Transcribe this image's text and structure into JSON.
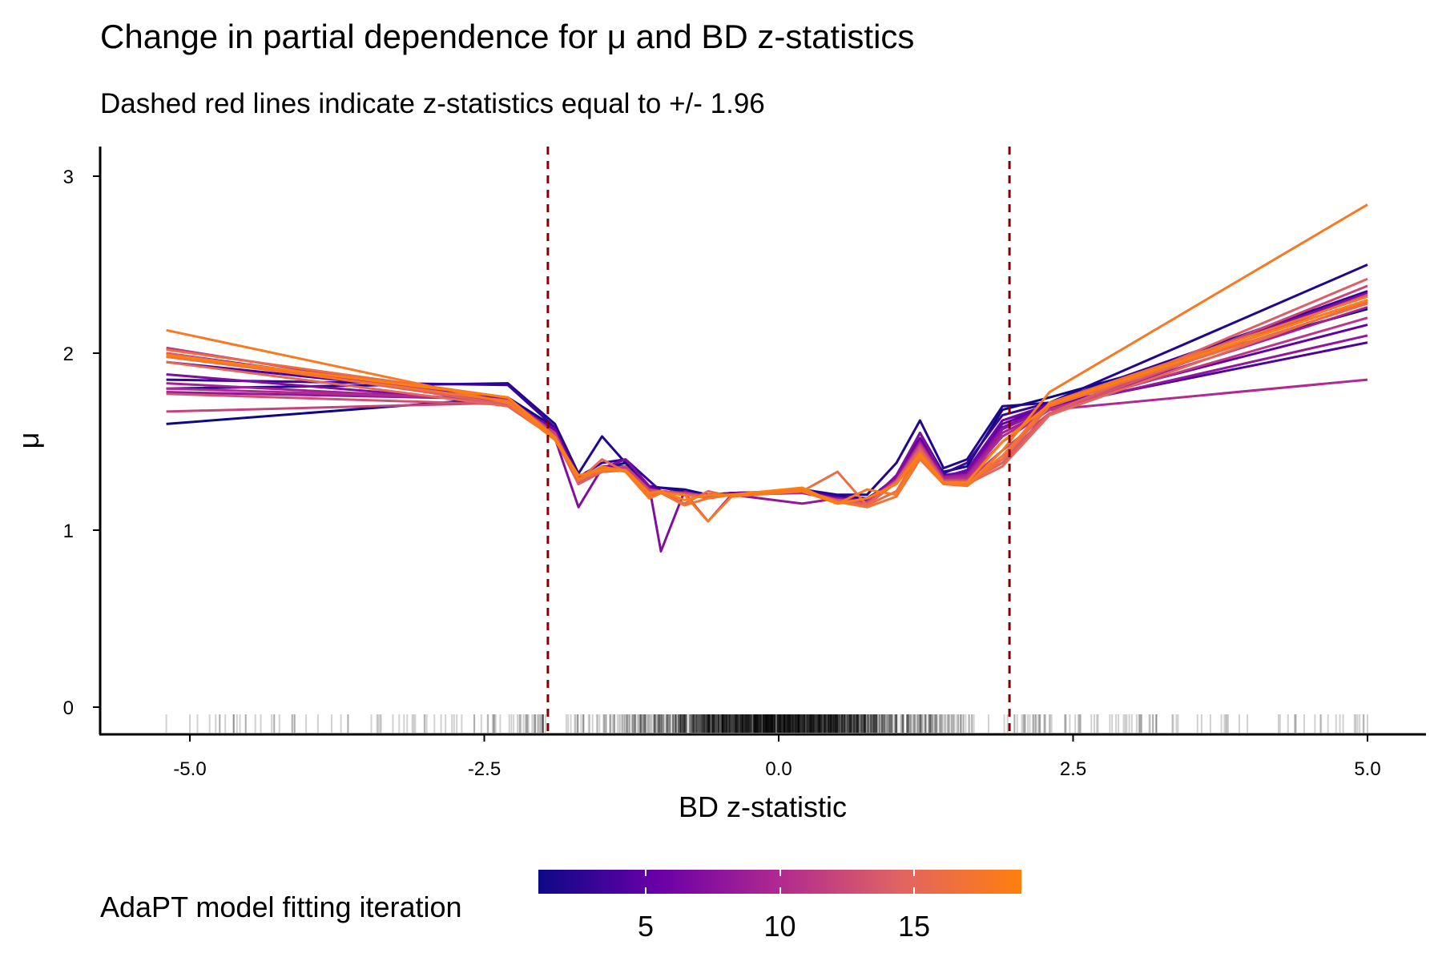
{
  "title": "Change in partial dependence for μ and BD z-statistics",
  "subtitle": "Dashed red lines indicate z-statistics equal to +/- 1.96",
  "legend": {
    "title": "AdaPT model fitting iteration",
    "range": [
      1,
      19
    ],
    "ticks": [
      "5",
      "10",
      "15"
    ],
    "colors": [
      "#0d0887",
      "#6a00a8",
      "#b12a90",
      "#e16462",
      "#ff7f0e"
    ]
  },
  "chart_data": {
    "type": "line",
    "title": "Change in partial dependence for μ and BD z-statistics",
    "subtitle": "Dashed red lines indicate z-statistics equal to +/- 1.96",
    "xlabel": "BD z-statistic",
    "ylabel": "μ",
    "xlim": [
      -5.8,
      5.8
    ],
    "ylim": [
      -0.15,
      3.15
    ],
    "xticks": [
      "-5.0",
      "-2.5",
      "0.0",
      "2.5",
      "5.0"
    ],
    "yticks": [
      "0",
      "1",
      "2",
      "3"
    ],
    "grid": false,
    "reference_lines": {
      "x": [
        -1.96,
        1.96
      ],
      "color": "#7f0000",
      "style": "dashed"
    },
    "rug": "dense black ticks of BD z-statistics along the x axis, concentrated between -2.5 and 2.5",
    "color_scale": "plasma-like, dark blue (iteration 1) to orange (iteration 19)",
    "x": [
      -5.2,
      -2.3,
      -1.9,
      -1.7,
      -1.5,
      -1.3,
      -1.1,
      -1.0,
      -0.8,
      -0.6,
      -0.4,
      0.2,
      0.5,
      0.75,
      1.0,
      1.2,
      1.4,
      1.6,
      1.9,
      2.3,
      5.0
    ],
    "series": [
      {
        "iteration": 1,
        "values": [
          1.6,
          1.75,
          1.58,
          1.3,
          1.35,
          1.38,
          1.23,
          1.24,
          1.23,
          1.2,
          1.2,
          1.23,
          1.19,
          1.18,
          1.28,
          1.48,
          1.33,
          1.36,
          1.68,
          1.75,
          2.25
        ]
      },
      {
        "iteration": 2,
        "values": [
          1.8,
          1.83,
          1.6,
          1.32,
          1.53,
          1.38,
          1.25,
          1.24,
          1.22,
          1.19,
          1.2,
          1.23,
          1.2,
          1.2,
          1.38,
          1.62,
          1.35,
          1.4,
          1.7,
          1.72,
          2.5
        ]
      },
      {
        "iteration": 3,
        "values": [
          1.85,
          1.82,
          1.58,
          1.3,
          1.38,
          1.4,
          1.28,
          1.22,
          1.21,
          1.2,
          1.21,
          1.22,
          1.19,
          1.17,
          1.3,
          1.55,
          1.32,
          1.38,
          1.65,
          1.72,
          2.35
        ]
      },
      {
        "iteration": 4,
        "values": [
          1.95,
          1.75,
          1.55,
          1.28,
          1.36,
          1.36,
          1.24,
          1.22,
          1.2,
          1.19,
          1.21,
          1.22,
          1.18,
          1.16,
          1.3,
          1.5,
          1.3,
          1.32,
          1.62,
          1.7,
          2.06
        ]
      },
      {
        "iteration": 5,
        "values": [
          1.98,
          1.74,
          1.56,
          1.3,
          1.34,
          1.35,
          1.25,
          1.22,
          1.21,
          1.19,
          1.2,
          1.22,
          1.18,
          1.16,
          1.29,
          1.52,
          1.31,
          1.33,
          1.6,
          1.7,
          2.16
        ]
      },
      {
        "iteration": 6,
        "values": [
          2.0,
          1.73,
          1.57,
          1.29,
          1.35,
          1.36,
          1.24,
          1.22,
          1.21,
          1.2,
          1.21,
          1.22,
          1.18,
          1.17,
          1.3,
          1.5,
          1.3,
          1.34,
          1.62,
          1.71,
          2.3
        ]
      },
      {
        "iteration": 7,
        "values": [
          1.88,
          1.72,
          1.52,
          1.13,
          1.35,
          1.4,
          1.25,
          0.88,
          1.22,
          1.18,
          1.2,
          1.22,
          1.17,
          1.15,
          1.31,
          1.55,
          1.3,
          1.32,
          1.58,
          1.7,
          2.34
        ]
      },
      {
        "iteration": 8,
        "values": [
          1.78,
          1.74,
          1.55,
          1.27,
          1.34,
          1.36,
          1.22,
          1.22,
          1.21,
          1.19,
          1.2,
          1.15,
          1.18,
          1.16,
          1.29,
          1.5,
          1.29,
          1.3,
          1.57,
          1.69,
          2.1
        ]
      },
      {
        "iteration": 9,
        "values": [
          1.83,
          1.73,
          1.54,
          1.28,
          1.34,
          1.35,
          1.23,
          1.22,
          1.2,
          1.19,
          1.2,
          1.22,
          1.17,
          1.16,
          1.28,
          1.48,
          1.3,
          1.31,
          1.55,
          1.68,
          2.26
        ]
      },
      {
        "iteration": 10,
        "values": [
          1.8,
          1.74,
          1.55,
          1.26,
          1.34,
          1.36,
          1.22,
          1.22,
          1.21,
          1.05,
          1.2,
          1.21,
          1.17,
          1.16,
          1.28,
          1.49,
          1.29,
          1.3,
          1.53,
          1.68,
          1.85
        ]
      },
      {
        "iteration": 11,
        "values": [
          2.03,
          1.72,
          1.53,
          1.27,
          1.33,
          1.34,
          1.22,
          1.22,
          1.21,
          1.19,
          1.2,
          1.22,
          1.17,
          1.16,
          1.28,
          1.47,
          1.28,
          1.29,
          1.5,
          1.68,
          2.2
        ]
      },
      {
        "iteration": 12,
        "values": [
          1.67,
          1.72,
          1.55,
          1.28,
          1.34,
          1.36,
          1.23,
          1.22,
          1.21,
          1.19,
          1.2,
          1.22,
          1.17,
          1.15,
          1.27,
          1.48,
          1.28,
          1.28,
          1.45,
          1.66,
          2.38
        ]
      },
      {
        "iteration": 13,
        "values": [
          1.77,
          1.71,
          1.52,
          1.27,
          1.33,
          1.34,
          1.22,
          1.22,
          1.2,
          1.19,
          1.2,
          1.22,
          1.17,
          1.15,
          1.28,
          1.47,
          1.28,
          1.28,
          1.4,
          1.66,
          2.33
        ]
      },
      {
        "iteration": 14,
        "values": [
          2.0,
          1.71,
          1.52,
          1.26,
          1.33,
          1.34,
          1.2,
          1.22,
          1.2,
          1.19,
          1.2,
          1.22,
          1.16,
          1.15,
          1.27,
          1.46,
          1.27,
          1.27,
          1.38,
          1.66,
          2.42
        ]
      },
      {
        "iteration": 15,
        "values": [
          1.95,
          1.7,
          1.52,
          1.28,
          1.4,
          1.33,
          1.2,
          1.22,
          1.15,
          1.22,
          1.19,
          1.23,
          1.16,
          1.14,
          1.27,
          1.45,
          1.27,
          1.26,
          1.36,
          1.65,
          2.29
        ]
      },
      {
        "iteration": 16,
        "values": [
          2.02,
          1.75,
          1.53,
          1.29,
          1.33,
          1.34,
          1.18,
          1.21,
          1.2,
          1.18,
          1.2,
          1.22,
          1.33,
          1.14,
          1.22,
          1.44,
          1.26,
          1.25,
          1.4,
          1.7,
          2.28
        ]
      },
      {
        "iteration": 17,
        "values": [
          1.98,
          1.73,
          1.52,
          1.28,
          1.35,
          1.34,
          1.19,
          1.21,
          1.14,
          1.18,
          1.2,
          1.23,
          1.16,
          1.13,
          1.19,
          1.4,
          1.26,
          1.26,
          1.42,
          1.72,
          2.32
        ]
      },
      {
        "iteration": 18,
        "values": [
          2.13,
          1.72,
          1.51,
          1.29,
          1.36,
          1.33,
          1.18,
          1.21,
          1.2,
          1.05,
          1.19,
          1.22,
          1.15,
          1.23,
          1.2,
          1.42,
          1.27,
          1.25,
          1.45,
          1.78,
          2.84
        ]
      },
      {
        "iteration": 19,
        "values": [
          1.99,
          1.75,
          1.52,
          1.31,
          1.34,
          1.34,
          1.21,
          1.22,
          1.17,
          1.2,
          1.2,
          1.24,
          1.15,
          1.18,
          1.26,
          1.43,
          1.27,
          1.27,
          1.5,
          1.71,
          2.3
        ]
      }
    ]
  }
}
